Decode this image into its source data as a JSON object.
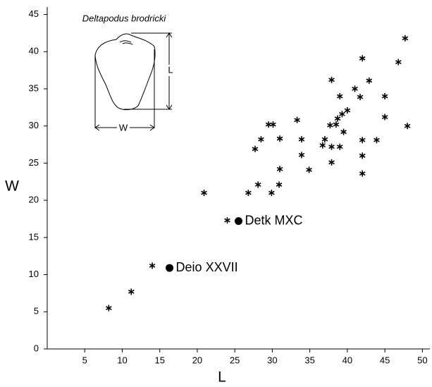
{
  "chart_data": {
    "type": "scatter",
    "x_label": "L",
    "y_label": "W",
    "xlim": [
      0,
      51
    ],
    "ylim": [
      0,
      46
    ],
    "xticks": [
      5,
      10,
      15,
      20,
      25,
      30,
      35,
      40,
      45,
      50
    ],
    "yticks": [
      0,
      5,
      10,
      15,
      20,
      25,
      30,
      35,
      40,
      45
    ],
    "color": "#000000",
    "x": [
      8.2,
      11.2,
      14,
      24,
      20.9,
      26.8,
      28.1,
      30.9,
      29.9,
      31,
      27.7,
      28.5,
      29.5,
      30.1,
      31,
      33.3,
      33.9,
      33.9,
      34.9,
      36.7,
      37,
      37.7,
      38.5,
      37.9,
      37.9,
      39,
      39.5,
      38.7,
      39.3,
      40,
      39,
      37.9,
      41,
      41.7,
      42.9,
      42,
      42,
      42,
      42,
      43.9,
      45,
      45,
      46.8,
      47.7,
      48
    ],
    "y": [
      5.5,
      7.7,
      11.2,
      17.3,
      21,
      21,
      22.1,
      22.1,
      21,
      24.2,
      26.9,
      28.2,
      30.2,
      30.2,
      28.3,
      30.8,
      28.2,
      26.1,
      24.1,
      27.4,
      28.2,
      30.1,
      30.2,
      27.2,
      25.1,
      27.2,
      29.2,
      31,
      31.6,
      32.1,
      34,
      36.2,
      35,
      33.9,
      36.1,
      39.1,
      28.1,
      26,
      23.6,
      28.1,
      31.2,
      34,
      38.6,
      41.8,
      30
    ],
    "highlights": [
      {
        "label": "Detk MXC",
        "x": 25.5,
        "y": 17.2
      },
      {
        "label": "Deio XXVII",
        "x": 16.3,
        "y": 10.9
      }
    ],
    "inset": {
      "title": "Deltapodus brodricki",
      "length_label": "L",
      "width_label": "W"
    }
  }
}
